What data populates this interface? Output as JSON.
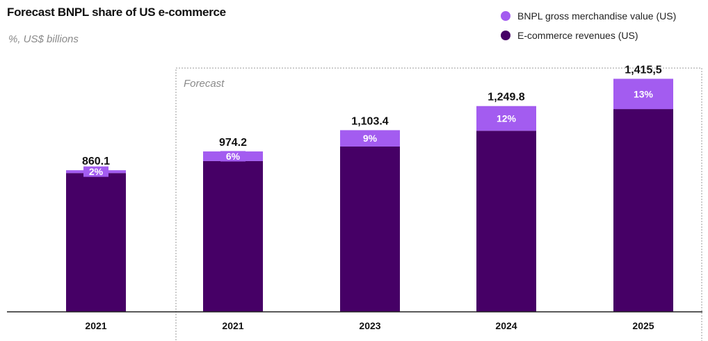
{
  "title": "Forecast BNPL share of US e-commerce",
  "subtitle": "%, US$ billions",
  "colors": {
    "bnpl": "#a35cf0",
    "ecommerce": "#460066",
    "axis": "#222222",
    "forecast_border": "#9a9a9a"
  },
  "legend": [
    {
      "label": "BNPL gross merchandise value (US)",
      "color": "#a35cf0"
    },
    {
      "label": "E-commerce revenues (US)",
      "color": "#460066"
    }
  ],
  "chart_data": {
    "type": "bar",
    "stacked": true,
    "forecast_label": "Forecast",
    "categories": [
      "2021",
      "2021",
      "2023",
      "2024",
      "2025"
    ],
    "totals_labels": [
      "860.1",
      "974.2",
      "1,103.4",
      "1,249.8",
      "1,415,5"
    ],
    "totals": [
      860.1,
      974.2,
      1103.4,
      1249.8,
      1415.5
    ],
    "share_labels": [
      "2%",
      "6%",
      "9%",
      "12%",
      "13%"
    ],
    "shares": [
      2,
      6,
      9,
      12,
      13
    ],
    "series": [
      {
        "name": "E-commerce revenues (US)",
        "color": "#460066"
      },
      {
        "name": "BNPL gross merchandise value (US)",
        "color": "#a35cf0"
      }
    ],
    "ylim": [
      0,
      1700
    ],
    "legend_position": "top-right",
    "grid": false
  }
}
